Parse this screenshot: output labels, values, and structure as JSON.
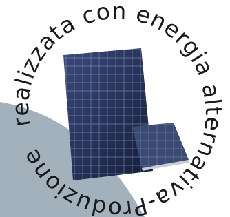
{
  "text": "realizzata con energia alternativa-Produzione"
}
